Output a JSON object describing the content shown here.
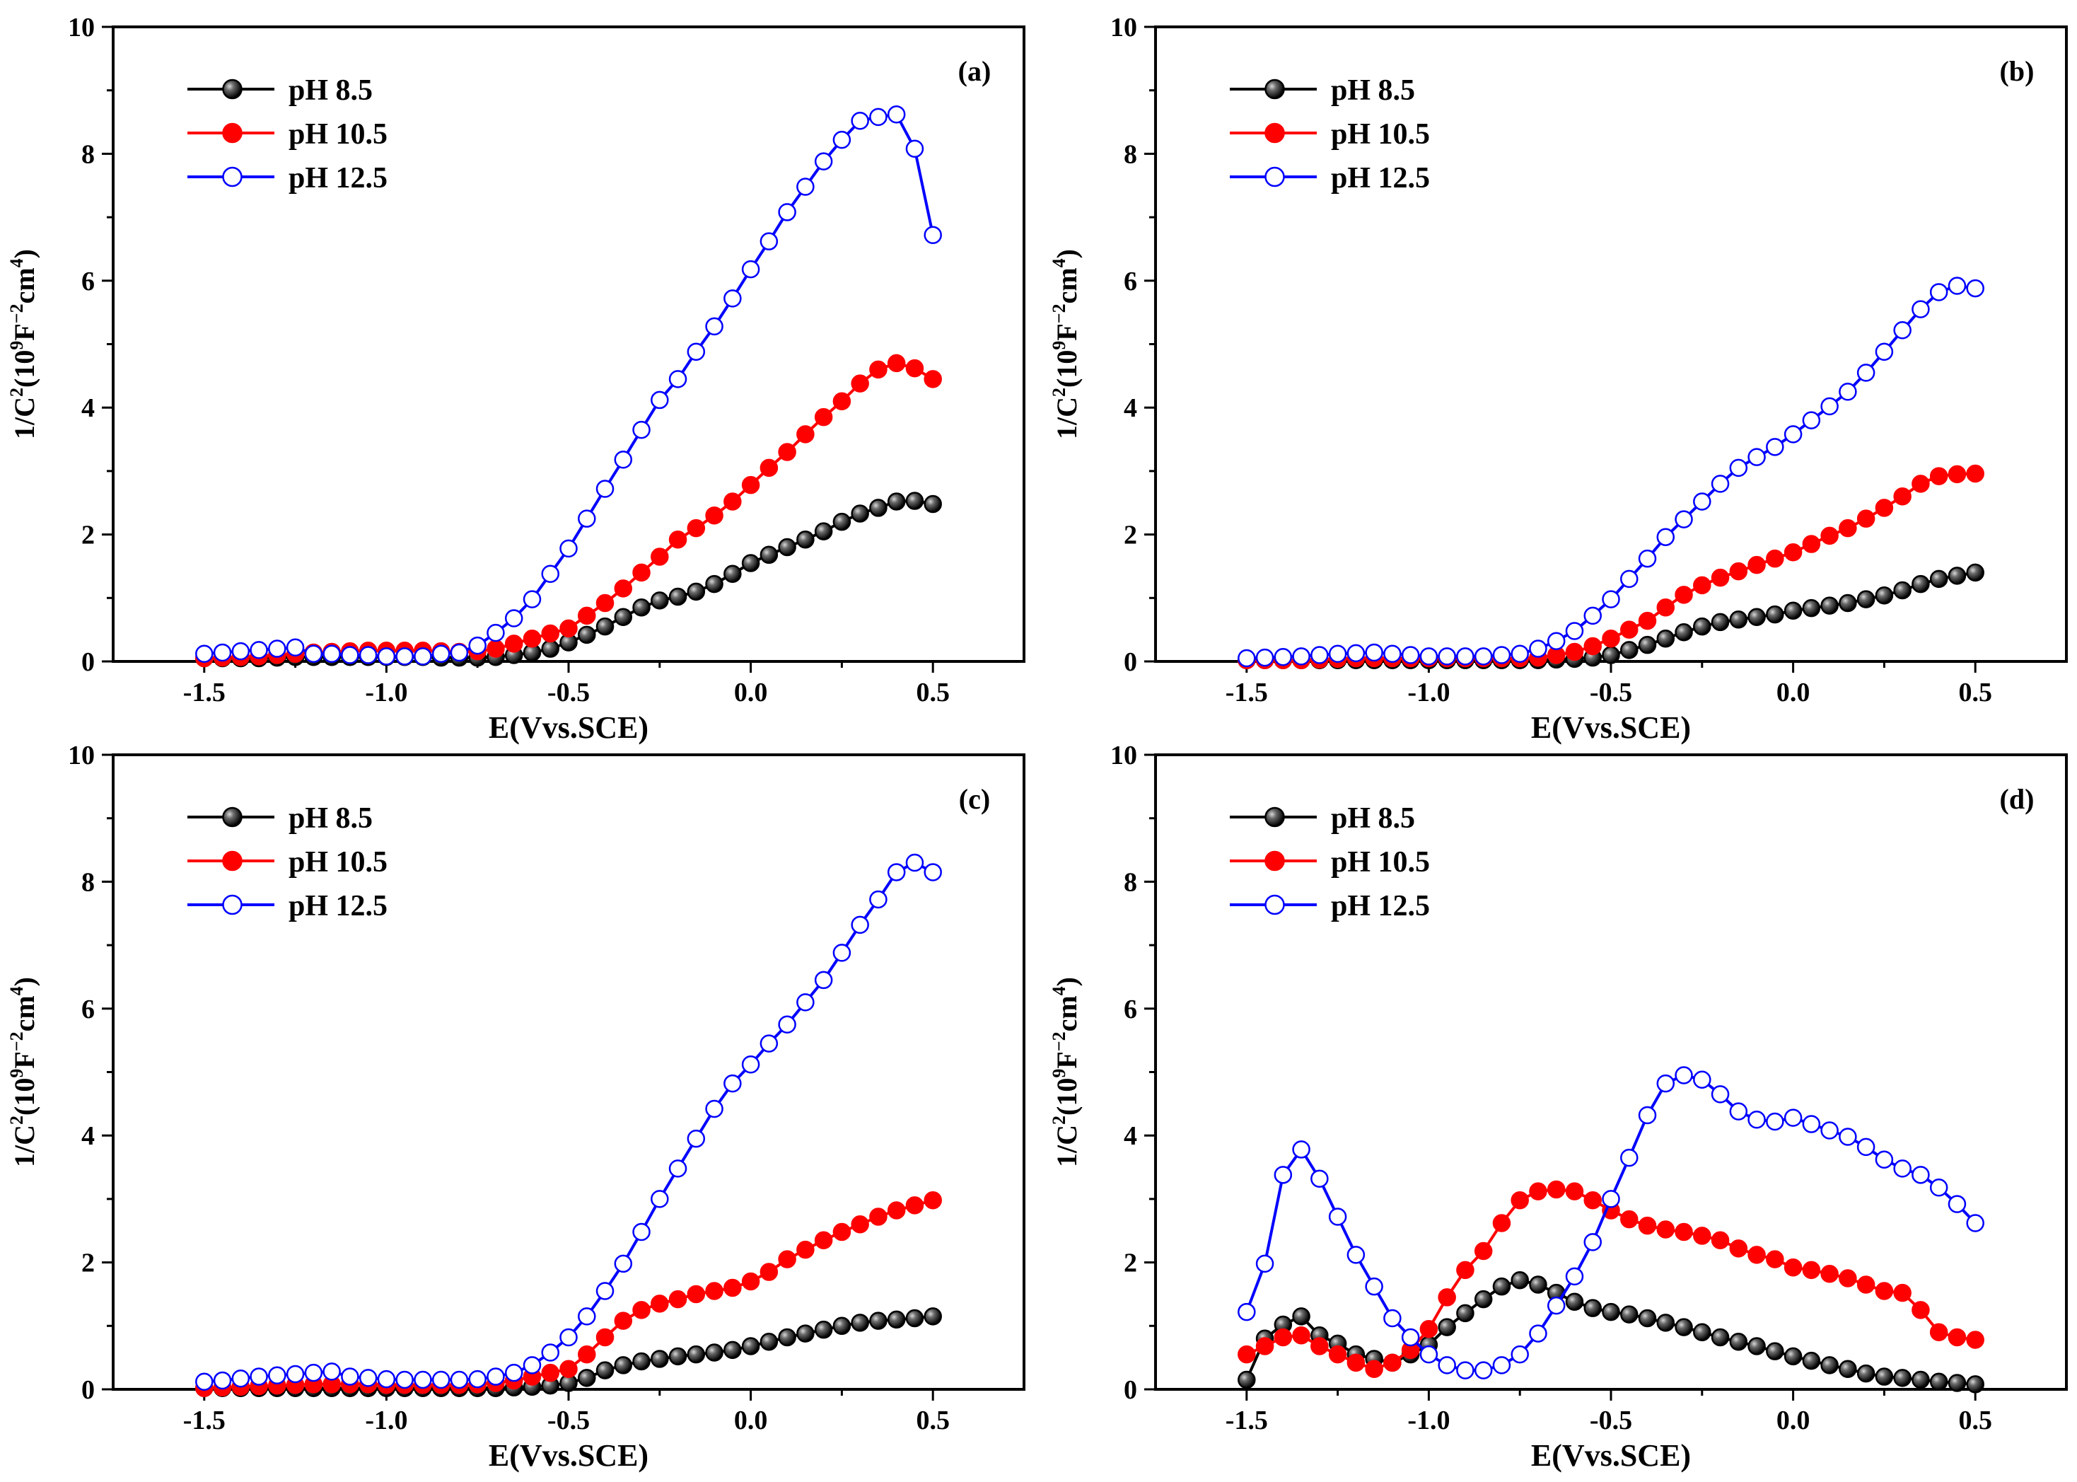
{
  "chart_data": [
    {
      "type": "line",
      "panel_label": "(a)",
      "xlabel": "E(Vvs.SCE)",
      "ylabel": {
        "base": "1/C",
        "exp1": "2",
        "open": "(10",
        "exp2": "9",
        "unit1": "F",
        "exp3": "−2",
        "unit2": "cm",
        "exp4": "4",
        "close": ")"
      },
      "xlim": [
        -1.75,
        0.75
      ],
      "ylim": [
        0,
        10
      ],
      "xticks": [
        -1.5,
        -1.0,
        -0.5,
        0.0,
        0.5
      ],
      "xtick_labels": [
        "-1.5",
        "-1.0",
        "-0.5",
        "0.0",
        "0.5"
      ],
      "yticks": [
        0,
        2,
        4,
        6,
        8,
        10
      ],
      "ytick_labels": [
        "0",
        "2",
        "4",
        "6",
        "8",
        "10"
      ],
      "legend": "top-left",
      "grid": false,
      "x": [
        -1.5,
        -1.45,
        -1.4,
        -1.35,
        -1.3,
        -1.25,
        -1.2,
        -1.15,
        -1.1,
        -1.05,
        -1.0,
        -0.95,
        -0.9,
        -0.85,
        -0.8,
        -0.75,
        -0.7,
        -0.65,
        -0.6,
        -0.55,
        -0.5,
        -0.45,
        -0.4,
        -0.35,
        -0.3,
        -0.25,
        -0.2,
        -0.15,
        -0.1,
        -0.05,
        0.0,
        0.05,
        0.1,
        0.15,
        0.2,
        0.25,
        0.3,
        0.35,
        0.4,
        0.45,
        0.5
      ],
      "series": [
        {
          "name": "pH 8.5",
          "color": "#000000",
          "marker": "sphere",
          "values": [
            0.05,
            0.05,
            0.05,
            0.05,
            0.06,
            0.07,
            0.07,
            0.07,
            0.07,
            0.07,
            0.07,
            0.07,
            0.07,
            0.06,
            0.06,
            0.06,
            0.07,
            0.1,
            0.14,
            0.2,
            0.3,
            0.42,
            0.55,
            0.7,
            0.85,
            0.96,
            1.02,
            1.1,
            1.22,
            1.38,
            1.55,
            1.68,
            1.8,
            1.92,
            2.05,
            2.2,
            2.33,
            2.42,
            2.52,
            2.53,
            2.48
          ]
        },
        {
          "name": "pH 10.5",
          "color": "#ff0000",
          "marker": "filled",
          "values": [
            0.05,
            0.06,
            0.07,
            0.08,
            0.1,
            0.12,
            0.14,
            0.15,
            0.16,
            0.17,
            0.17,
            0.17,
            0.17,
            0.16,
            0.15,
            0.16,
            0.2,
            0.28,
            0.36,
            0.44,
            0.52,
            0.72,
            0.92,
            1.15,
            1.4,
            1.65,
            1.92,
            2.1,
            2.3,
            2.52,
            2.78,
            3.05,
            3.3,
            3.58,
            3.85,
            4.1,
            4.38,
            4.6,
            4.7,
            4.62,
            4.45
          ]
        },
        {
          "name": "pH 12.5",
          "color": "#0000ff",
          "marker": "open",
          "values": [
            0.12,
            0.14,
            0.16,
            0.18,
            0.2,
            0.22,
            0.12,
            0.12,
            0.1,
            0.1,
            0.08,
            0.08,
            0.08,
            0.12,
            0.14,
            0.25,
            0.45,
            0.68,
            0.98,
            1.38,
            1.78,
            2.25,
            2.72,
            3.18,
            3.65,
            4.12,
            4.45,
            4.88,
            5.28,
            5.72,
            6.18,
            6.62,
            7.08,
            7.48,
            7.88,
            8.22,
            8.52,
            8.58,
            8.62,
            8.08,
            6.72
          ]
        }
      ]
    },
    {
      "type": "line",
      "panel_label": "(b)",
      "xlabel": "E(Vvs.SCE)",
      "ylabel": {
        "base": "1/C",
        "exp1": "2",
        "open": "(10",
        "exp2": "9",
        "unit1": "F",
        "exp3": "−2",
        "unit2": "cm",
        "exp4": "4",
        "close": ")"
      },
      "xlim": [
        -1.75,
        0.75
      ],
      "ylim": [
        0,
        10
      ],
      "xticks": [
        -1.5,
        -1.0,
        -0.5,
        0.0,
        0.5
      ],
      "xtick_labels": [
        "-1.5",
        "-1.0",
        "-0.5",
        "0.0",
        "0.5"
      ],
      "yticks": [
        0,
        2,
        4,
        6,
        8,
        10
      ],
      "ytick_labels": [
        "0",
        "2",
        "4",
        "6",
        "8",
        "10"
      ],
      "legend": "top-left",
      "grid": false,
      "x": [
        -1.5,
        -1.45,
        -1.4,
        -1.35,
        -1.3,
        -1.25,
        -1.2,
        -1.15,
        -1.1,
        -1.05,
        -1.0,
        -0.95,
        -0.9,
        -0.85,
        -0.8,
        -0.75,
        -0.7,
        -0.65,
        -0.6,
        -0.55,
        -0.5,
        -0.45,
        -0.4,
        -0.35,
        -0.3,
        -0.25,
        -0.2,
        -0.15,
        -0.1,
        -0.05,
        0.0,
        0.05,
        0.1,
        0.15,
        0.2,
        0.25,
        0.3,
        0.35,
        0.4,
        0.45,
        0.5
      ],
      "series": [
        {
          "name": "pH 8.5",
          "color": "#000000",
          "marker": "sphere",
          "values": [
            0.02,
            0.02,
            0.02,
            0.02,
            0.02,
            0.02,
            0.02,
            0.02,
            0.02,
            0.02,
            0.02,
            0.02,
            0.02,
            0.02,
            0.02,
            0.02,
            0.02,
            0.03,
            0.04,
            0.06,
            0.1,
            0.18,
            0.26,
            0.36,
            0.46,
            0.55,
            0.62,
            0.66,
            0.7,
            0.74,
            0.8,
            0.84,
            0.88,
            0.92,
            0.98,
            1.04,
            1.12,
            1.22,
            1.3,
            1.35,
            1.4
          ]
        },
        {
          "name": "pH 10.5",
          "color": "#ff0000",
          "marker": "filled",
          "values": [
            0.02,
            0.02,
            0.02,
            0.02,
            0.03,
            0.04,
            0.05,
            0.05,
            0.05,
            0.05,
            0.05,
            0.05,
            0.05,
            0.05,
            0.05,
            0.05,
            0.06,
            0.1,
            0.15,
            0.24,
            0.36,
            0.5,
            0.64,
            0.85,
            1.05,
            1.2,
            1.32,
            1.42,
            1.52,
            1.62,
            1.72,
            1.85,
            1.98,
            2.1,
            2.25,
            2.42,
            2.6,
            2.8,
            2.92,
            2.95,
            2.96
          ]
        },
        {
          "name": "pH 12.5",
          "color": "#0000ff",
          "marker": "open",
          "values": [
            0.05,
            0.06,
            0.07,
            0.08,
            0.1,
            0.12,
            0.13,
            0.14,
            0.12,
            0.1,
            0.08,
            0.08,
            0.08,
            0.08,
            0.1,
            0.12,
            0.2,
            0.32,
            0.48,
            0.72,
            0.98,
            1.3,
            1.62,
            1.96,
            2.24,
            2.52,
            2.8,
            3.05,
            3.22,
            3.38,
            3.58,
            3.8,
            4.02,
            4.25,
            4.55,
            4.88,
            5.22,
            5.55,
            5.82,
            5.92,
            5.88
          ]
        }
      ]
    },
    {
      "type": "line",
      "panel_label": "(c)",
      "xlabel": "E(Vvs.SCE)",
      "ylabel": {
        "base": "1/C",
        "exp1": "2",
        "open": "(10",
        "exp2": "9",
        "unit1": "F",
        "exp3": "−2",
        "unit2": "cm",
        "exp4": "4",
        "close": ")"
      },
      "xlim": [
        -1.75,
        0.75
      ],
      "ylim": [
        0,
        10
      ],
      "xticks": [
        -1.5,
        -1.0,
        -0.5,
        0.0,
        0.5
      ],
      "xtick_labels": [
        "-1.5",
        "-1.0",
        "-0.5",
        "0.0",
        "0.5"
      ],
      "yticks": [
        0,
        2,
        4,
        6,
        8,
        10
      ],
      "ytick_labels": [
        "0",
        "2",
        "4",
        "6",
        "8",
        "10"
      ],
      "legend": "top-left",
      "grid": false,
      "x": [
        -1.5,
        -1.45,
        -1.4,
        -1.35,
        -1.3,
        -1.25,
        -1.2,
        -1.15,
        -1.1,
        -1.05,
        -1.0,
        -0.95,
        -0.9,
        -0.85,
        -0.8,
        -0.75,
        -0.7,
        -0.65,
        -0.6,
        -0.55,
        -0.5,
        -0.45,
        -0.4,
        -0.35,
        -0.3,
        -0.25,
        -0.2,
        -0.15,
        -0.1,
        -0.05,
        0.0,
        0.05,
        0.1,
        0.15,
        0.2,
        0.25,
        0.3,
        0.35,
        0.4,
        0.45,
        0.5
      ],
      "series": [
        {
          "name": "pH 8.5",
          "color": "#000000",
          "marker": "sphere",
          "values": [
            0.02,
            0.02,
            0.02,
            0.02,
            0.02,
            0.02,
            0.02,
            0.02,
            0.02,
            0.02,
            0.02,
            0.02,
            0.02,
            0.02,
            0.02,
            0.02,
            0.02,
            0.03,
            0.04,
            0.06,
            0.1,
            0.18,
            0.3,
            0.38,
            0.44,
            0.48,
            0.52,
            0.55,
            0.58,
            0.62,
            0.68,
            0.75,
            0.82,
            0.88,
            0.94,
            1.0,
            1.05,
            1.08,
            1.1,
            1.12,
            1.15
          ]
        },
        {
          "name": "pH 10.5",
          "color": "#ff0000",
          "marker": "filled",
          "values": [
            0.02,
            0.03,
            0.04,
            0.05,
            0.06,
            0.07,
            0.08,
            0.08,
            0.08,
            0.08,
            0.07,
            0.07,
            0.07,
            0.07,
            0.07,
            0.08,
            0.1,
            0.14,
            0.2,
            0.26,
            0.32,
            0.55,
            0.82,
            1.08,
            1.25,
            1.35,
            1.42,
            1.5,
            1.55,
            1.6,
            1.7,
            1.85,
            2.05,
            2.2,
            2.35,
            2.48,
            2.6,
            2.72,
            2.82,
            2.9,
            2.98
          ]
        },
        {
          "name": "pH 12.5",
          "color": "#0000ff",
          "marker": "open",
          "values": [
            0.12,
            0.14,
            0.17,
            0.2,
            0.22,
            0.24,
            0.26,
            0.28,
            0.2,
            0.18,
            0.16,
            0.15,
            0.15,
            0.15,
            0.15,
            0.16,
            0.2,
            0.26,
            0.38,
            0.58,
            0.82,
            1.15,
            1.55,
            1.98,
            2.48,
            3.0,
            3.48,
            3.95,
            4.42,
            4.82,
            5.12,
            5.45,
            5.75,
            6.1,
            6.45,
            6.88,
            7.32,
            7.72,
            8.15,
            8.3,
            8.15
          ]
        }
      ]
    },
    {
      "type": "line",
      "panel_label": "(d)",
      "xlabel": "E(Vvs.SCE)",
      "ylabel": {
        "base": "1/C",
        "exp1": "2",
        "open": "(10",
        "exp2": "9",
        "unit1": "F",
        "exp3": "−2",
        "unit2": "cm",
        "exp4": "4",
        "close": ")"
      },
      "xlim": [
        -1.75,
        0.75
      ],
      "ylim": [
        0,
        10
      ],
      "xticks": [
        -1.5,
        -1.0,
        -0.5,
        0.0,
        0.5
      ],
      "xtick_labels": [
        "-1.5",
        "-1.0",
        "-0.5",
        "0.0",
        "0.5"
      ],
      "yticks": [
        0,
        2,
        4,
        6,
        8,
        10
      ],
      "ytick_labels": [
        "0",
        "2",
        "4",
        "6",
        "8",
        "10"
      ],
      "legend": "top-left",
      "grid": false,
      "x": [
        -1.5,
        -1.45,
        -1.4,
        -1.35,
        -1.3,
        -1.25,
        -1.2,
        -1.15,
        -1.1,
        -1.05,
        -1.0,
        -0.95,
        -0.9,
        -0.85,
        -0.8,
        -0.75,
        -0.7,
        -0.65,
        -0.6,
        -0.55,
        -0.5,
        -0.45,
        -0.4,
        -0.35,
        -0.3,
        -0.25,
        -0.2,
        -0.15,
        -0.1,
        -0.05,
        0.0,
        0.05,
        0.1,
        0.15,
        0.2,
        0.25,
        0.3,
        0.35,
        0.4,
        0.45,
        0.5
      ],
      "series": [
        {
          "name": "pH 8.5",
          "color": "#000000",
          "marker": "sphere",
          "values": [
            0.15,
            0.8,
            1.02,
            1.15,
            0.85,
            0.72,
            0.55,
            0.48,
            0.42,
            0.55,
            0.7,
            0.98,
            1.2,
            1.42,
            1.62,
            1.72,
            1.65,
            1.52,
            1.38,
            1.28,
            1.22,
            1.18,
            1.12,
            1.05,
            0.98,
            0.9,
            0.82,
            0.75,
            0.68,
            0.6,
            0.52,
            0.45,
            0.38,
            0.32,
            0.25,
            0.2,
            0.18,
            0.15,
            0.12,
            0.1,
            0.08
          ]
        },
        {
          "name": "pH 10.5",
          "color": "#ff0000",
          "marker": "filled",
          "values": [
            0.55,
            0.68,
            0.82,
            0.85,
            0.68,
            0.55,
            0.42,
            0.32,
            0.42,
            0.62,
            0.95,
            1.45,
            1.88,
            2.18,
            2.62,
            2.98,
            3.12,
            3.15,
            3.12,
            2.98,
            2.82,
            2.68,
            2.58,
            2.52,
            2.48,
            2.42,
            2.35,
            2.22,
            2.12,
            2.05,
            1.92,
            1.88,
            1.82,
            1.75,
            1.65,
            1.55,
            1.52,
            1.25,
            0.9,
            0.82,
            0.78
          ]
        },
        {
          "name": "pH 12.5",
          "color": "#0000ff",
          "marker": "open",
          "values": [
            1.22,
            1.98,
            3.38,
            3.78,
            3.32,
            2.72,
            2.12,
            1.62,
            1.12,
            0.82,
            0.55,
            0.38,
            0.3,
            0.3,
            0.38,
            0.55,
            0.88,
            1.32,
            1.78,
            2.32,
            3.0,
            3.65,
            4.32,
            4.82,
            4.95,
            4.88,
            4.65,
            4.38,
            4.25,
            4.22,
            4.28,
            4.18,
            4.08,
            3.98,
            3.82,
            3.62,
            3.48,
            3.38,
            3.18,
            2.92,
            2.62
          ]
        }
      ]
    }
  ]
}
